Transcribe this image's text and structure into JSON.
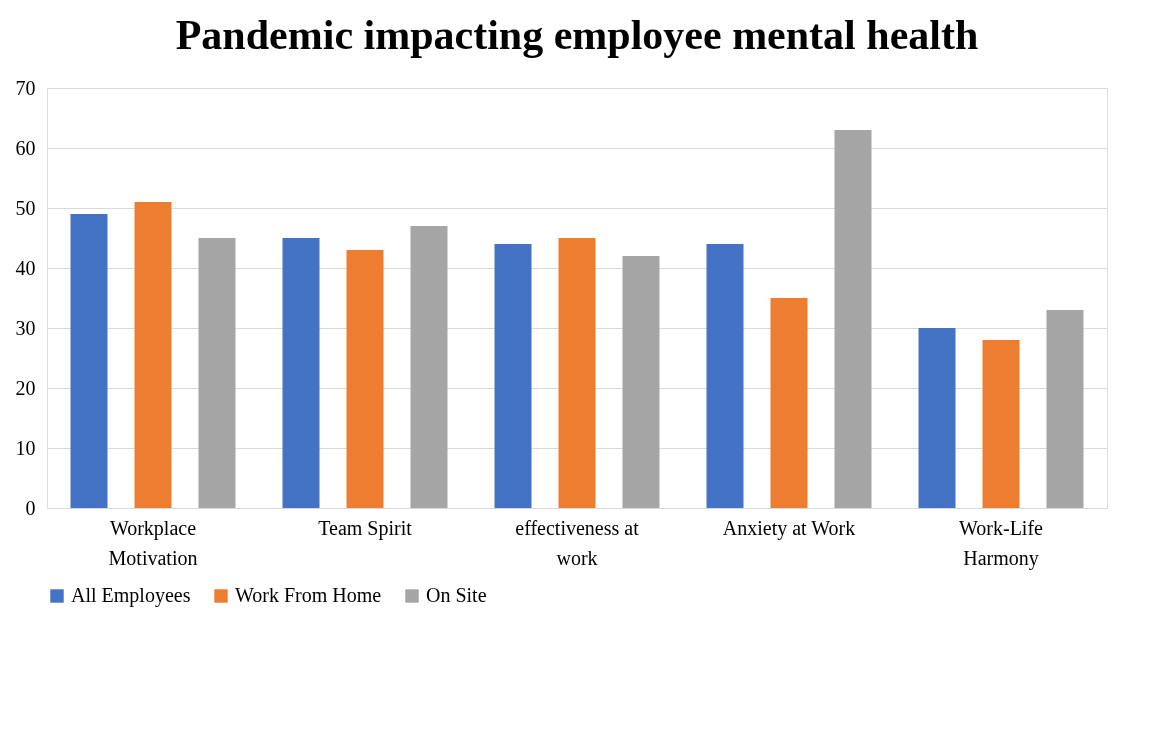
{
  "chart_data": {
    "type": "bar",
    "title": "Pandemic impacting employee mental health",
    "categories": [
      "Workplace Motivation",
      "Team Spirit",
      "effectiveness at work",
      "Anxiety at Work",
      "Work-Life Harmony"
    ],
    "series": [
      {
        "name": "All Employees",
        "color": "#4472c4",
        "values": [
          49,
          45,
          44,
          44,
          30
        ]
      },
      {
        "name": "Work From Home",
        "color": "#ed7d31",
        "values": [
          51,
          43,
          45,
          35,
          28
        ]
      },
      {
        "name": "On Site",
        "color": "#a5a5a5",
        "values": [
          45,
          47,
          42,
          63,
          33
        ]
      }
    ],
    "ylim": [
      0,
      70
    ],
    "yticks": [
      0,
      10,
      20,
      30,
      40,
      50,
      60,
      70
    ],
    "grid": "y",
    "legend": "bottom"
  }
}
